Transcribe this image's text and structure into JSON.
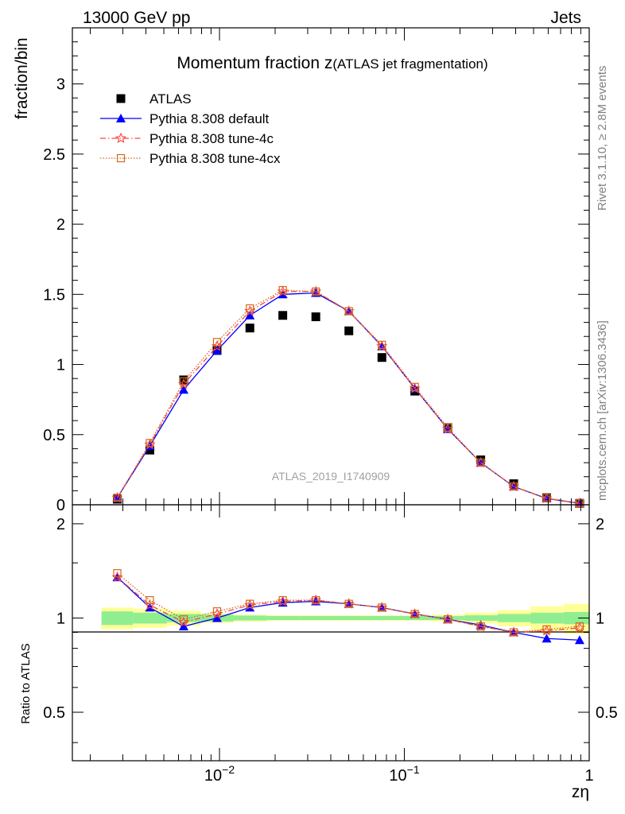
{
  "header": {
    "left": "13000 GeV pp",
    "right": "Jets"
  },
  "side_text": {
    "rivet": "Rivet 3.1.10, ≥ 2.8M events",
    "mcplots": "mcplots.cern.ch [arXiv:1306.3436]"
  },
  "watermark": "ATLAS_2019_I1740909",
  "chart_data": [
    {
      "type": "scatter",
      "title_main": "Momentum fraction z",
      "title_sub": "(ATLAS jet fragmentation)",
      "xlabel": "zη",
      "ylabel": "fraction/bin",
      "xscale": "log",
      "xlim": [
        0.0016,
        1.0
      ],
      "ylim": [
        0,
        3.4
      ],
      "yticks": [
        0,
        0.5,
        1,
        1.5,
        2,
        2.5,
        3
      ],
      "ytick_labels": [
        "0",
        "0.5",
        "1",
        "1.5",
        "2",
        "2.5",
        "3"
      ],
      "xtick_labels": [
        {
          "value": 0.01,
          "base": "10",
          "exp": "−2"
        },
        {
          "value": 0.1,
          "base": "10",
          "exp": "−1"
        },
        {
          "value": 1,
          "base": "1",
          "exp": ""
        }
      ],
      "legend_position": "top-left",
      "x": [
        0.0028,
        0.0042,
        0.0064,
        0.0097,
        0.0146,
        0.022,
        0.0332,
        0.0501,
        0.0756,
        0.1139,
        0.1717,
        0.2589,
        0.3903,
        0.5886,
        0.8874
      ],
      "series": [
        {
          "name": "ATLAS",
          "color": "#000000",
          "marker": "square",
          "line": "none",
          "values": [
            0.04,
            0.39,
            0.89,
            1.1,
            1.26,
            1.35,
            1.34,
            1.24,
            1.05,
            0.81,
            0.55,
            0.32,
            0.15,
            0.05,
            0.01
          ]
        },
        {
          "name": "Pythia 8.308 default",
          "color": "#0000ff",
          "marker": "triangle",
          "line": "solid",
          "values": [
            0.05,
            0.42,
            0.82,
            1.1,
            1.35,
            1.5,
            1.51,
            1.38,
            1.13,
            0.83,
            0.54,
            0.3,
            0.13,
            0.045,
            0.01
          ]
        },
        {
          "name": "Pythia 8.308 tune-4c",
          "color": "#ff4444",
          "marker": "star",
          "line": "dashdot",
          "values": [
            0.05,
            0.43,
            0.86,
            1.13,
            1.38,
            1.52,
            1.52,
            1.38,
            1.13,
            0.83,
            0.54,
            0.3,
            0.13,
            0.046,
            0.01
          ]
        },
        {
          "name": "Pythia 8.308 tune-4cx",
          "color": "#d2691e",
          "marker": "open-square",
          "line": "dotted",
          "values": [
            0.05,
            0.44,
            0.88,
            1.16,
            1.4,
            1.53,
            1.52,
            1.38,
            1.14,
            0.84,
            0.55,
            0.3,
            0.13,
            0.047,
            0.01
          ]
        }
      ]
    },
    {
      "type": "line",
      "ylabel": "Ratio to ATLAS",
      "xscale": "log",
      "xlim": [
        0.0016,
        1.0
      ],
      "ylim": [
        0.35,
        2.3
      ],
      "yticks": [
        0.5,
        1,
        2
      ],
      "ytick_labels": [
        "0.5",
        "1",
        "2"
      ],
      "x": [
        0.0028,
        0.0042,
        0.0064,
        0.0097,
        0.0146,
        0.022,
        0.0332,
        0.0501,
        0.0756,
        0.1139,
        0.1717,
        0.2589,
        0.3903,
        0.5886,
        0.8874
      ],
      "band_edges": [
        0.0023,
        0.0034,
        0.0052,
        0.0079,
        0.0119,
        0.018,
        0.0271,
        0.041,
        0.0618,
        0.0933,
        0.1407,
        0.2121,
        0.3199,
        0.4825,
        0.7277,
        1.0
      ],
      "band_inner_halfwidth": [
        0.05,
        0.04,
        0.03,
        0.025,
        0.018,
        0.015,
        0.015,
        0.015,
        0.015,
        0.015,
        0.015,
        0.02,
        0.03,
        0.04,
        0.045
      ],
      "band_outer_halfwidth": [
        0.08,
        0.07,
        0.055,
        0.035,
        0.025,
        0.02,
        0.02,
        0.02,
        0.02,
        0.02,
        0.025,
        0.04,
        0.06,
        0.09,
        0.11
      ],
      "series": [
        {
          "name": "Pythia 8.308 default",
          "color": "#0000ff",
          "values": [
            1.35,
            1.08,
            0.94,
            1.0,
            1.08,
            1.12,
            1.13,
            1.11,
            1.08,
            1.03,
            0.99,
            0.95,
            0.9,
            0.86,
            0.85
          ]
        },
        {
          "name": "Pythia 8.308 tune-4c",
          "color": "#ff4444",
          "values": [
            1.35,
            1.1,
            0.97,
            1.03,
            1.1,
            1.13,
            1.14,
            1.11,
            1.08,
            1.03,
            0.99,
            0.94,
            0.9,
            0.91,
            0.93
          ]
        },
        {
          "name": "Pythia 8.308 tune-4cx",
          "color": "#d2691e",
          "values": [
            1.39,
            1.14,
            0.99,
            1.05,
            1.11,
            1.14,
            1.14,
            1.11,
            1.08,
            1.03,
            0.99,
            0.94,
            0.9,
            0.92,
            0.94
          ]
        }
      ]
    }
  ]
}
